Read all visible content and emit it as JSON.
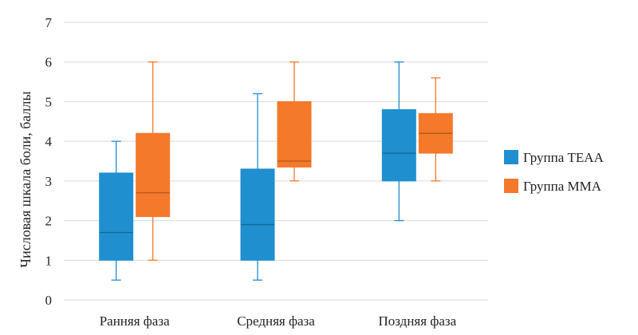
{
  "chart_data": {
    "type": "box",
    "ylabel": "Числовая шкала боли, баллы",
    "ylim": [
      0,
      7
    ],
    "yticks": [
      "0",
      "1",
      "2",
      "3",
      "4",
      "5",
      "6",
      "7"
    ],
    "grid": true,
    "legend_position": "right",
    "categories": [
      "Ранняя фаза",
      "Средняя фаза",
      "Поздняя фаза"
    ],
    "series": [
      {
        "name": "Группа TEAA",
        "color": "#1f8fcf",
        "boxes": [
          {
            "min": 0.5,
            "q1": 1.0,
            "median": 1.7,
            "q3": 3.2,
            "max": 4.0
          },
          {
            "min": 0.5,
            "q1": 1.0,
            "median": 1.9,
            "q3": 3.3,
            "max": 5.2
          },
          {
            "min": 2.0,
            "q1": 3.0,
            "median": 3.7,
            "q3": 4.8,
            "max": 6.0
          }
        ]
      },
      {
        "name": "Группа MMA",
        "color": "#f4792a",
        "boxes": [
          {
            "min": 1.0,
            "q1": 2.1,
            "median": 2.7,
            "q3": 4.2,
            "max": 6.0
          },
          {
            "min": 3.0,
            "q1": 3.35,
            "median": 3.5,
            "q3": 5.0,
            "max": 6.0
          },
          {
            "min": 3.0,
            "q1": 3.7,
            "median": 4.2,
            "q3": 4.7,
            "max": 5.6
          }
        ]
      }
    ]
  }
}
